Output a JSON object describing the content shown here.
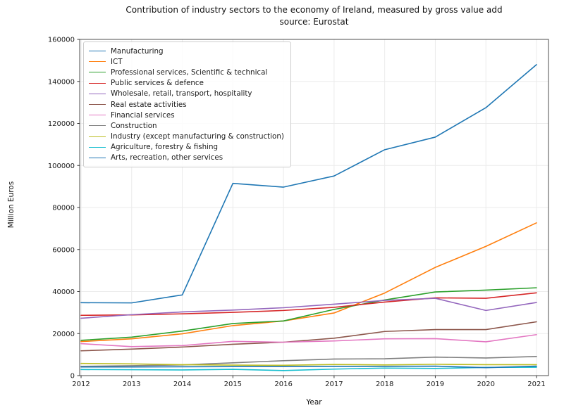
{
  "figure": {
    "title_line1": "Contribution of industry sectors to the economy of Ireland, measured by gross value add",
    "title_line2": "source: Eurostat",
    "xlabel": "Year",
    "ylabel": "Million Euros"
  },
  "chart_data": {
    "type": "line",
    "title": "Contribution of industry sectors to the economy of Ireland, measured by gross value add source: Eurostat",
    "xlabel": "Year",
    "ylabel": "Million Euros",
    "x": [
      2012,
      2013,
      2014,
      2015,
      2016,
      2017,
      2018,
      2019,
      2020,
      2021
    ],
    "ylim": [
      0,
      160000
    ],
    "yticks": [
      0,
      20000,
      40000,
      60000,
      80000,
      100000,
      120000,
      140000,
      160000
    ],
    "grid": true,
    "legend_position": "upper-left",
    "series": [
      {
        "name": "Manufacturing",
        "color": "#1f77b4",
        "values": [
          34700,
          34600,
          38400,
          91500,
          89700,
          95000,
          107500,
          113500,
          127500,
          148000
        ]
      },
      {
        "name": "ICT",
        "color": "#ff7f0e",
        "values": [
          16200,
          17500,
          19900,
          23800,
          26000,
          29800,
          39300,
          51500,
          61500,
          72700
        ]
      },
      {
        "name": "Professional services, Scientific & technical",
        "color": "#2ca02c",
        "values": [
          16800,
          18300,
          21200,
          24800,
          26000,
          31500,
          36000,
          39800,
          40700,
          41800
        ]
      },
      {
        "name": "Public services & defence",
        "color": "#d62728",
        "values": [
          28700,
          28900,
          29400,
          30100,
          31000,
          32500,
          35000,
          37000,
          36800,
          39400
        ]
      },
      {
        "name": "Wholesale, retail, transport, hospitality",
        "color": "#9467bd",
        "values": [
          27300,
          29000,
          30300,
          31200,
          32300,
          34000,
          35800,
          36800,
          31000,
          34800
        ]
      },
      {
        "name": "Real estate activities",
        "color": "#8c564b",
        "values": [
          11800,
          12600,
          13600,
          14900,
          15900,
          17800,
          21000,
          21900,
          21900,
          25600
        ]
      },
      {
        "name": "Financial services",
        "color": "#e377c2",
        "values": [
          15200,
          13800,
          14300,
          16300,
          15900,
          16500,
          17500,
          17600,
          16100,
          19500
        ]
      },
      {
        "name": "Construction",
        "color": "#7f7f7f",
        "values": [
          4400,
          4700,
          5100,
          6100,
          7100,
          7900,
          8000,
          8800,
          8400,
          9100
        ]
      },
      {
        "name": "Industry (except manufacturing & construction)",
        "color": "#bcbd22",
        "values": [
          5800,
          5600,
          5200,
          5000,
          4900,
          5300,
          5100,
          5400,
          5200,
          5200
        ]
      },
      {
        "name": "Agriculture, forestry & fishing",
        "color": "#17becf",
        "values": [
          2900,
          2800,
          2700,
          3000,
          2400,
          3100,
          3600,
          3400,
          3900,
          4000
        ]
      },
      {
        "name": "Arts, recreation, other services",
        "color": "#1f77b4",
        "values": [
          4100,
          4100,
          4200,
          4300,
          4300,
          4400,
          4400,
          4500,
          3800,
          4500
        ]
      }
    ]
  }
}
